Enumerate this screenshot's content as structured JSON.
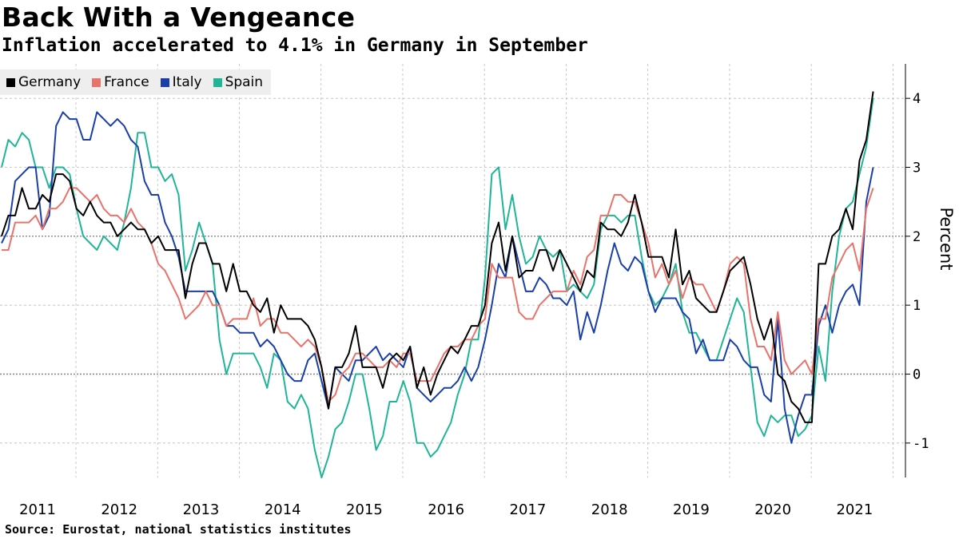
{
  "header": {
    "title": "Back With a Vengeance",
    "subtitle": "Inflation accelerated to 4.1% in Germany in September"
  },
  "footer": {
    "source": "Source: Eurostat, national statistics institutes"
  },
  "colors": {
    "Germany": "#000000",
    "France": "#e8736a",
    "Italy": "#1a3fa8",
    "Spain": "#1fb596",
    "grid": "#bbbbbb",
    "zero_line": "#888888"
  },
  "chart_data": {
    "type": "line",
    "title": "Back With a Vengeance",
    "subtitle": "Inflation accelerated to 4.1% in Germany in September",
    "ylabel": "Percent",
    "xlabel": "",
    "ylim": [
      -1.5,
      4.5
    ],
    "yticks": [
      -1,
      0,
      1,
      2,
      3,
      4
    ],
    "xlim": [
      "2011-01",
      "2021-09"
    ],
    "xticks": [
      "2011",
      "2012",
      "2013",
      "2014",
      "2015",
      "2016",
      "2017",
      "2018",
      "2019",
      "2020",
      "2021"
    ],
    "x_start": "2011-01",
    "x_step": "month",
    "grid": true,
    "legend_position": "top-left",
    "series": [
      {
        "name": "Germany",
        "values": [
          2.0,
          2.3,
          2.3,
          2.7,
          2.4,
          2.4,
          2.6,
          2.5,
          2.9,
          2.9,
          2.8,
          2.4,
          2.3,
          2.5,
          2.3,
          2.2,
          2.2,
          2.0,
          2.1,
          2.2,
          2.1,
          2.1,
          1.9,
          2.0,
          1.8,
          1.8,
          1.8,
          1.1,
          1.6,
          1.9,
          1.9,
          1.6,
          1.6,
          1.2,
          1.6,
          1.2,
          1.2,
          1.0,
          0.9,
          1.1,
          0.6,
          1.0,
          0.8,
          0.8,
          0.8,
          0.7,
          0.5,
          0.1,
          -0.5,
          0.1,
          0.1,
          0.3,
          0.7,
          0.1,
          0.1,
          0.1,
          -0.2,
          0.2,
          0.3,
          0.2,
          0.4,
          -0.2,
          0.1,
          -0.3,
          0.0,
          0.2,
          0.4,
          0.3,
          0.5,
          0.7,
          0.7,
          1.0,
          1.9,
          2.2,
          1.5,
          2.0,
          1.4,
          1.5,
          1.5,
          1.8,
          1.8,
          1.5,
          1.8,
          1.6,
          1.4,
          1.2,
          1.5,
          1.4,
          2.2,
          2.1,
          2.1,
          2.0,
          2.2,
          2.6,
          2.2,
          1.7,
          1.7,
          1.7,
          1.4,
          2.1,
          1.3,
          1.5,
          1.1,
          1.0,
          0.9,
          0.9,
          1.2,
          1.5,
          1.6,
          1.7,
          1.3,
          0.8,
          0.5,
          0.8,
          0.0,
          -0.1,
          -0.4,
          -0.5,
          -0.7,
          -0.7,
          1.6,
          1.6,
          2.0,
          2.1,
          2.4,
          2.1,
          3.1,
          3.4,
          4.1
        ]
      },
      {
        "name": "France",
        "values": [
          1.8,
          1.8,
          2.2,
          2.2,
          2.2,
          2.3,
          2.1,
          2.4,
          2.4,
          2.5,
          2.7,
          2.7,
          2.6,
          2.5,
          2.6,
          2.4,
          2.3,
          2.3,
          2.2,
          2.4,
          2.2,
          2.1,
          1.9,
          1.6,
          1.5,
          1.3,
          1.1,
          0.8,
          0.9,
          1.0,
          1.2,
          1.0,
          1.0,
          0.7,
          0.8,
          0.8,
          0.8,
          1.1,
          0.7,
          0.8,
          0.8,
          0.6,
          0.6,
          0.5,
          0.4,
          0.5,
          0.4,
          0.1,
          -0.4,
          -0.3,
          0.0,
          0.1,
          0.3,
          0.3,
          0.2,
          0.1,
          0.1,
          0.2,
          0.1,
          0.3,
          0.3,
          -0.1,
          -0.1,
          -0.1,
          0.1,
          0.3,
          0.4,
          0.4,
          0.5,
          0.5,
          0.7,
          0.8,
          1.6,
          1.4,
          1.4,
          1.4,
          0.9,
          0.8,
          0.8,
          1.0,
          1.1,
          1.2,
          1.2,
          1.2,
          1.5,
          1.3,
          1.7,
          1.8,
          2.3,
          2.3,
          2.6,
          2.6,
          2.5,
          2.5,
          2.2,
          1.9,
          1.4,
          1.6,
          1.3,
          1.5,
          1.1,
          1.4,
          1.3,
          1.3,
          1.1,
          0.9,
          1.2,
          1.6,
          1.7,
          1.6,
          0.8,
          0.4,
          0.4,
          0.2,
          0.9,
          0.2,
          0.0,
          0.1,
          0.2,
          0.0,
          0.8,
          0.8,
          1.4,
          1.6,
          1.8,
          1.9,
          1.5,
          2.4,
          2.7
        ]
      },
      {
        "name": "Italy",
        "values": [
          1.9,
          2.1,
          2.8,
          2.9,
          3.0,
          3.0,
          2.1,
          2.3,
          3.6,
          3.8,
          3.7,
          3.7,
          3.4,
          3.4,
          3.8,
          3.7,
          3.6,
          3.7,
          3.6,
          3.4,
          3.3,
          2.8,
          2.6,
          2.6,
          2.2,
          2.0,
          1.7,
          1.2,
          1.2,
          1.2,
          1.2,
          1.2,
          1.0,
          0.7,
          0.7,
          0.6,
          0.6,
          0.6,
          0.4,
          0.5,
          0.4,
          0.2,
          0.0,
          -0.1,
          -0.1,
          0.2,
          0.3,
          -0.1,
          -0.5,
          0.1,
          0.0,
          -0.1,
          0.2,
          0.2,
          0.3,
          0.4,
          0.2,
          0.3,
          0.2,
          0.1,
          0.4,
          -0.2,
          -0.3,
          -0.4,
          -0.3,
          -0.2,
          -0.2,
          -0.1,
          0.1,
          -0.1,
          0.1,
          0.5,
          1.0,
          1.6,
          1.4,
          2.0,
          1.6,
          1.2,
          1.2,
          1.4,
          1.3,
          1.1,
          1.1,
          1.0,
          1.2,
          0.5,
          0.9,
          0.6,
          1.0,
          1.5,
          1.9,
          1.6,
          1.5,
          1.7,
          1.6,
          1.2,
          0.9,
          1.1,
          1.1,
          1.1,
          0.9,
          0.8,
          0.3,
          0.5,
          0.2,
          0.2,
          0.2,
          0.5,
          0.4,
          0.2,
          0.1,
          0.1,
          -0.3,
          -0.4,
          0.8,
          -0.5,
          -1.0,
          -0.6,
          -0.3,
          -0.3,
          0.7,
          1.0,
          0.6,
          1.0,
          1.2,
          1.3,
          1.0,
          2.5,
          3.0
        ]
      },
      {
        "name": "Spain",
        "values": [
          3.0,
          3.4,
          3.3,
          3.5,
          3.4,
          3.0,
          3.0,
          2.7,
          3.0,
          3.0,
          2.9,
          2.4,
          2.0,
          1.9,
          1.8,
          2.0,
          1.9,
          1.8,
          2.2,
          2.7,
          3.5,
          3.5,
          3.0,
          3.0,
          2.8,
          2.9,
          2.6,
          1.5,
          1.8,
          2.2,
          1.9,
          1.6,
          0.5,
          0.0,
          0.3,
          0.3,
          0.3,
          0.3,
          0.1,
          -0.2,
          0.3,
          0.2,
          -0.4,
          -0.5,
          -0.3,
          -0.5,
          -1.1,
          -1.5,
          -1.2,
          -0.8,
          -0.7,
          -0.4,
          0.0,
          0.0,
          -0.5,
          -1.1,
          -0.9,
          -0.4,
          -0.4,
          -0.1,
          -0.4,
          -1.0,
          -1.0,
          -1.2,
          -1.1,
          -0.9,
          -0.7,
          -0.3,
          0.0,
          0.5,
          0.5,
          1.4,
          2.9,
          3.0,
          2.1,
          2.6,
          2.0,
          1.6,
          1.7,
          2.0,
          1.8,
          1.7,
          1.8,
          1.2,
          1.3,
          1.2,
          1.1,
          1.3,
          2.1,
          2.3,
          2.3,
          2.2,
          2.3,
          2.3,
          1.7,
          1.2,
          1.0,
          1.1,
          1.3,
          1.6,
          0.9,
          0.6,
          0.6,
          0.4,
          0.2,
          0.2,
          0.5,
          0.8,
          1.1,
          0.9,
          0.1,
          -0.7,
          -0.9,
          -0.6,
          -0.7,
          -0.6,
          -0.6,
          -0.9,
          -0.8,
          -0.6,
          0.4,
          -0.1,
          1.2,
          2.0,
          2.4,
          2.5,
          2.9,
          3.3,
          4.0
        ]
      }
    ]
  }
}
